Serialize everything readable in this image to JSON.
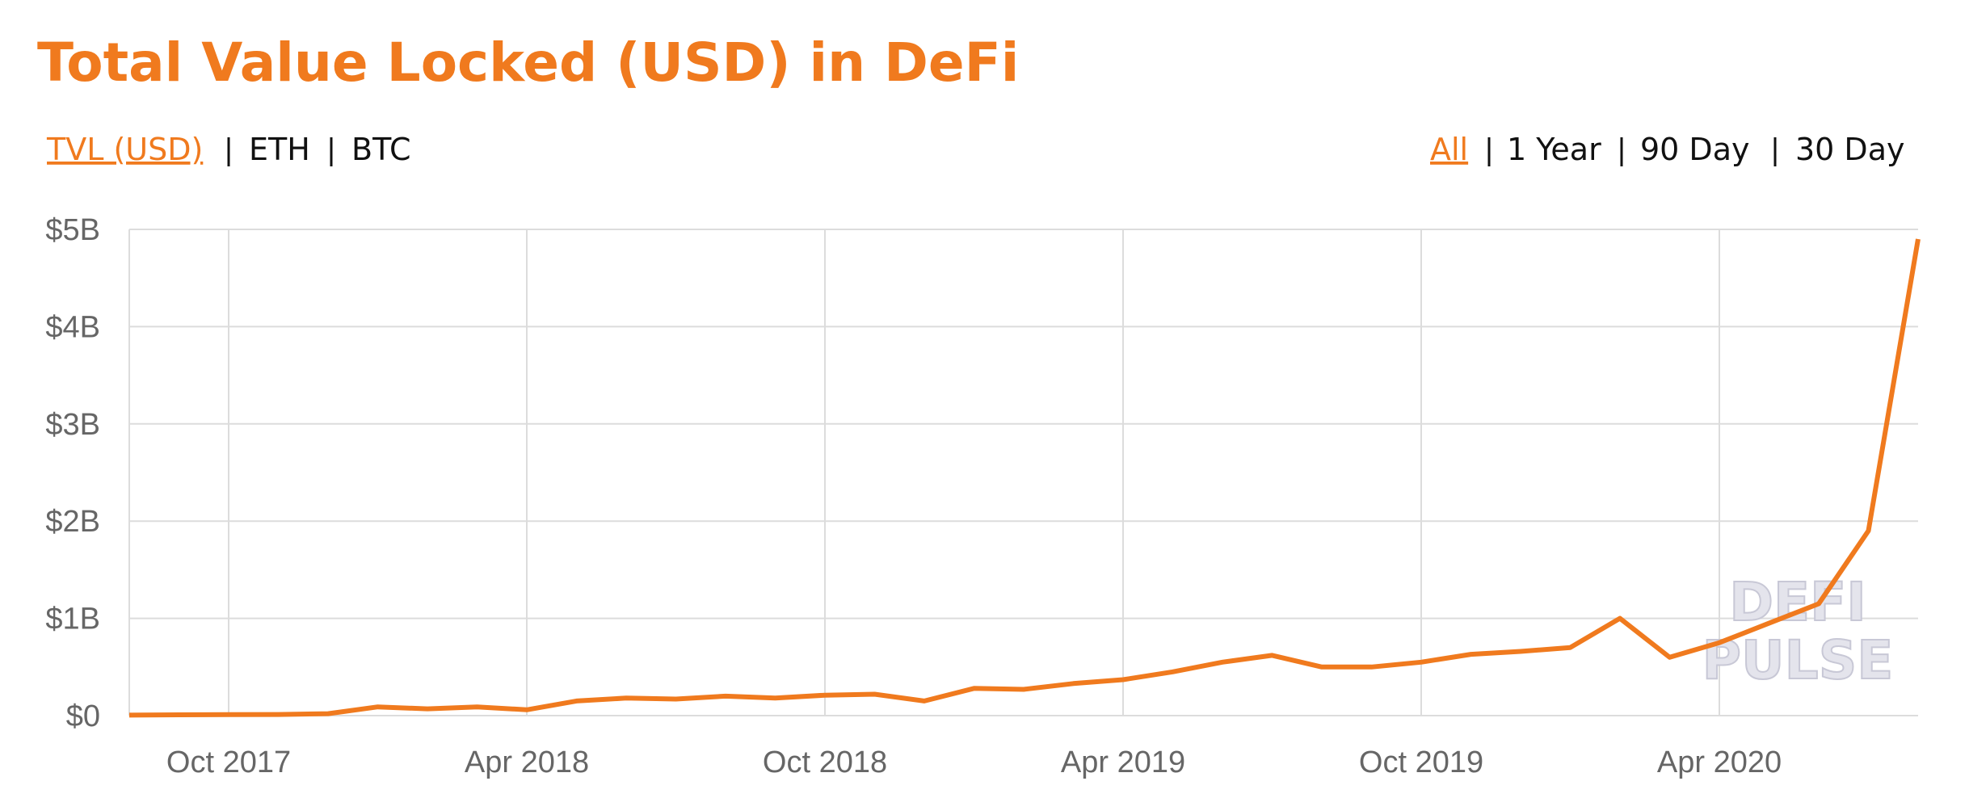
{
  "chart_data": {
    "type": "line",
    "title": "Total Value Locked (USD) in DeFi",
    "metric_options": [
      "TVL (USD)",
      "ETH",
      "BTC"
    ],
    "range_options": [
      "All",
      "1 Year",
      "90 Day",
      "30 Day"
    ],
    "watermark": [
      "DEFI",
      "PULSE"
    ],
    "x": [
      "2017-08",
      "2017-09",
      "2017-10",
      "2017-11",
      "2017-12",
      "2018-01",
      "2018-02",
      "2018-03",
      "2018-04",
      "2018-05",
      "2018-06",
      "2018-07",
      "2018-08",
      "2018-09",
      "2018-10",
      "2018-11",
      "2018-12",
      "2019-01",
      "2019-02",
      "2019-03",
      "2019-04",
      "2019-05",
      "2019-06",
      "2019-07",
      "2019-08",
      "2019-09",
      "2019-10",
      "2019-11",
      "2019-12",
      "2020-01",
      "2020-02",
      "2020-03",
      "2020-04",
      "2020-05",
      "2020-06",
      "2020-07",
      "2020-08"
    ],
    "series": [
      {
        "name": "TVL (USD)",
        "color": "#f07a1e",
        "values": [
          5000000,
          8000000,
          10000000,
          12000000,
          20000000,
          90000000,
          70000000,
          90000000,
          60000000,
          150000000,
          180000000,
          170000000,
          200000000,
          180000000,
          210000000,
          220000000,
          150000000,
          280000000,
          270000000,
          330000000,
          370000000,
          450000000,
          550000000,
          620000000,
          500000000,
          500000000,
          550000000,
          630000000,
          660000000,
          700000000,
          1000000000,
          600000000,
          750000000,
          950000000,
          1150000000,
          1900000000,
          4900000000
        ]
      }
    ],
    "xlim": [
      "2017-08",
      "2020-08"
    ],
    "xticks": [
      {
        "value": "2017-10",
        "label": "Oct 2017"
      },
      {
        "value": "2018-04",
        "label": "Apr 2018"
      },
      {
        "value": "2018-10",
        "label": "Oct 2018"
      },
      {
        "value": "2019-04",
        "label": "Apr 2019"
      },
      {
        "value": "2019-10",
        "label": "Oct 2019"
      },
      {
        "value": "2020-04",
        "label": "Apr 2020"
      }
    ],
    "ylim": [
      0,
      5000000000
    ],
    "yticks": [
      {
        "value": 0,
        "label": "$0"
      },
      {
        "value": 1000000000,
        "label": "$1B"
      },
      {
        "value": 2000000000,
        "label": "$2B"
      },
      {
        "value": 3000000000,
        "label": "$3B"
      },
      {
        "value": 4000000000,
        "label": "$4B"
      },
      {
        "value": 5000000000,
        "label": "$5B"
      }
    ],
    "grid": true
  }
}
